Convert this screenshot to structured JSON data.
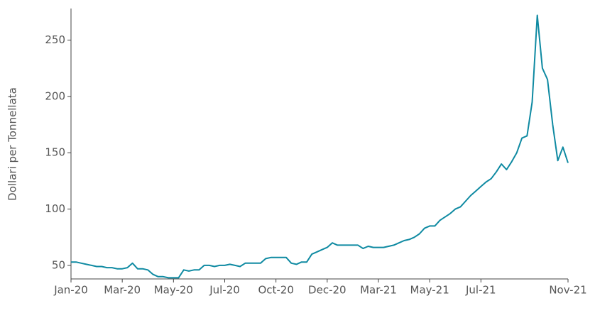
{
  "chart_data": {
    "type": "line",
    "y_label": "Dollari per Tonnellata",
    "categories": [
      "Jan-20",
      null,
      null,
      null,
      null,
      null,
      null,
      null,
      null,
      null,
      "Mar-20",
      null,
      null,
      null,
      null,
      null,
      null,
      null,
      null,
      null,
      "May-20",
      null,
      null,
      null,
      null,
      null,
      null,
      null,
      null,
      null,
      "Jul-20",
      null,
      null,
      null,
      null,
      null,
      null,
      null,
      null,
      null,
      "Oct-20",
      null,
      null,
      null,
      null,
      null,
      null,
      null,
      null,
      null,
      "Dec-20",
      null,
      null,
      null,
      null,
      null,
      null,
      null,
      null,
      null,
      "Mar-21",
      null,
      null,
      null,
      null,
      null,
      null,
      null,
      null,
      null,
      "May-21",
      null,
      null,
      null,
      null,
      null,
      null,
      null,
      null,
      null,
      "Jul-21",
      null,
      null,
      null,
      null,
      null,
      null,
      null,
      null,
      null,
      null,
      null,
      null,
      null,
      null,
      null,
      null,
      "Nov-21"
    ],
    "series": [
      {
        "color": "#0f8aa2",
        "values": [
          53,
          53,
          52,
          51,
          50,
          49,
          49,
          48,
          48,
          47,
          47,
          48,
          52,
          47,
          47,
          46,
          42,
          40,
          40,
          39,
          39,
          39,
          46,
          45,
          46,
          46,
          50,
          50,
          49,
          50,
          50,
          51,
          50,
          49,
          52,
          52,
          52,
          52,
          56,
          57,
          57,
          57,
          57,
          52,
          51,
          53,
          53,
          60,
          62,
          64,
          66,
          70,
          68,
          68,
          68,
          68,
          68,
          65,
          67,
          66,
          66,
          66,
          67,
          68,
          70,
          72,
          73,
          75,
          78,
          83,
          85,
          85,
          90,
          93,
          96,
          100,
          102,
          107,
          112,
          116,
          120,
          124,
          127,
          133,
          140,
          135,
          142,
          150,
          163,
          165,
          195,
          272,
          225,
          215,
          175,
          143,
          155,
          141
        ]
      }
    ],
    "ylim": [
      38,
      278
    ],
    "yticks": [
      50,
      100,
      150,
      200,
      250
    ]
  }
}
